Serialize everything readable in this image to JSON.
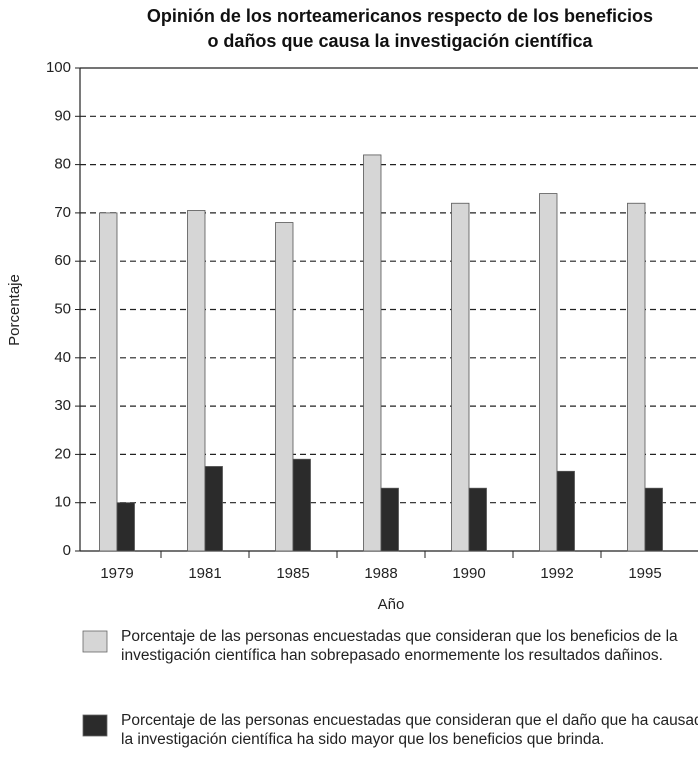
{
  "chart_data": {
    "type": "bar",
    "title": [
      "Opinión de los norteamericanos respecto de los beneficios",
      "o daños que causa la investigación científica"
    ],
    "x_label": "Año",
    "y_label": "Porcentaje",
    "categories": [
      "1979",
      "1981",
      "1985",
      "1988",
      "1990",
      "1992",
      "1995"
    ],
    "series": [
      {
        "name": "Porcentaje de las personas encuestadas que consideran que los beneficios de la investigación científica han sobrepasado enormemente los resultados dañinos.",
        "color": "#d6d6d6",
        "values": [
          70,
          70.5,
          68,
          82,
          72,
          74,
          72
        ]
      },
      {
        "name": "Porcentaje de las personas encuestadas que consideran que el daño que ha causado la investigación científica ha sido mayor que los beneficios que brinda.",
        "color": "#2b2b2b",
        "values": [
          10,
          17.5,
          19,
          13,
          13,
          16.5,
          13
        ]
      }
    ],
    "ylim": [
      0,
      100
    ],
    "yticks": [
      0,
      10,
      20,
      30,
      40,
      50,
      60,
      70,
      80,
      90,
      100
    ],
    "grid": true
  }
}
